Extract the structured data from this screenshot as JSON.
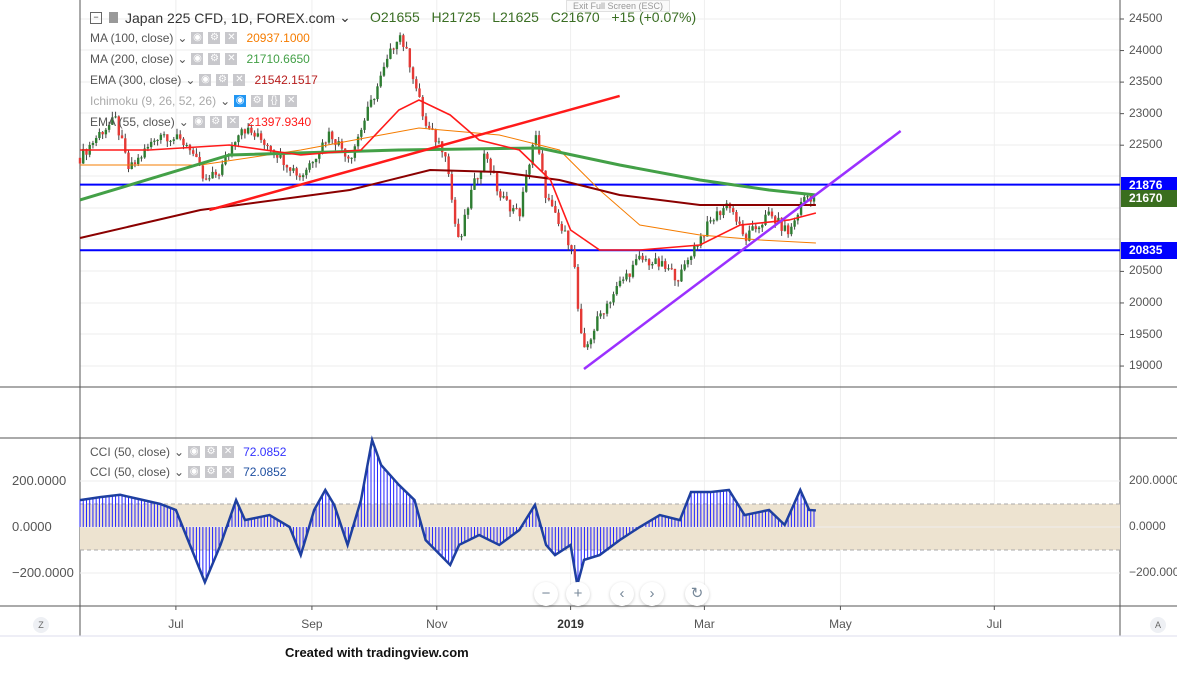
{
  "header": {
    "symbol": "Japan 225 CFD, 1D, FOREX.com",
    "open": "O21655",
    "high": "H21725",
    "low": "L21625",
    "close": "C21670",
    "change": "+15 (+0.07%)",
    "exit_fullscreen": "Exit Full Screen (ESC)"
  },
  "indicators": [
    {
      "label": "MA (100, close)",
      "value": "20937.1000",
      "color": "#f57c00"
    },
    {
      "label": "MA (200, close)",
      "value": "21710.6650",
      "color": "#43a047"
    },
    {
      "label": "EMA (300, close)",
      "value": "21542.1517",
      "color": "#b71c1c"
    },
    {
      "label": "Ichimoku (9, 26, 52, 26)",
      "value": "",
      "color": "#999999"
    },
    {
      "label": "EMA (55, close)",
      "value": "21397.9340",
      "color": "#ff1a1a"
    }
  ],
  "cci_legends": [
    {
      "label": "CCI (50, close)",
      "value": "72.0852",
      "color": "#3333ff"
    },
    {
      "label": "CCI (50, close)",
      "value": "72.0852",
      "color": "#1e4fa0"
    }
  ],
  "price_axis": {
    "ticks": [
      "24500",
      "24000",
      "23500",
      "23000",
      "22500",
      "20500",
      "20000",
      "19500",
      "19000"
    ],
    "tick_values": [
      24500,
      24000,
      23500,
      23000,
      22500,
      20500,
      20000,
      19500,
      19000
    ]
  },
  "price_tags": [
    {
      "value": "21876",
      "color": "#0000ff"
    },
    {
      "value": "21670",
      "color": "#3a6e1e"
    },
    {
      "value": "20835",
      "color": "#0000ff"
    }
  ],
  "cci_axis": {
    "ticks": [
      "200.0000",
      "0.0000",
      "−200.0000"
    ],
    "tick_values": [
      200,
      0,
      -200
    ]
  },
  "time_axis": {
    "labels": [
      "Jul",
      "Sep",
      "Nov",
      "2019",
      "Mar",
      "May",
      "Jul"
    ],
    "label_t": [
      43,
      104,
      160,
      220,
      280,
      341,
      410
    ]
  },
  "nav": {
    "zoom_out": "−",
    "zoom_in": "+",
    "prev": "‹",
    "next": "›",
    "reset": "↻",
    "left_corner": "Z",
    "right_corner": "A"
  },
  "credit": "Created with tradingview.com",
  "chart_data": {
    "type": "candlestick",
    "x_unit": "calendar days from start (late May 2018)",
    "close_path": [
      [
        0,
        22300
      ],
      [
        9,
        22700
      ],
      [
        16,
        22900
      ],
      [
        22,
        22100
      ],
      [
        36,
        22700
      ],
      [
        49,
        22500
      ],
      [
        56,
        21900
      ],
      [
        63,
        22100
      ],
      [
        72,
        22800
      ],
      [
        85,
        22500
      ],
      [
        99,
        22000
      ],
      [
        112,
        22700
      ],
      [
        121,
        22300
      ],
      [
        132,
        23300
      ],
      [
        143,
        24300
      ],
      [
        148,
        23800
      ],
      [
        155,
        22800
      ],
      [
        164,
        22400
      ],
      [
        168,
        21300
      ],
      [
        170,
        20900
      ],
      [
        175,
        21700
      ],
      [
        182,
        22400
      ],
      [
        188,
        21700
      ],
      [
        197,
        21400
      ],
      [
        204,
        22700
      ],
      [
        209,
        21700
      ],
      [
        215,
        21200
      ],
      [
        221,
        20900
      ],
      [
        224,
        19600
      ],
      [
        226,
        19200
      ],
      [
        233,
        19800
      ],
      [
        242,
        20300
      ],
      [
        251,
        20700
      ],
      [
        260,
        20600
      ],
      [
        269,
        20400
      ],
      [
        274,
        20800
      ],
      [
        283,
        21300
      ],
      [
        291,
        21600
      ],
      [
        298,
        21000
      ],
      [
        309,
        21400
      ],
      [
        318,
        21100
      ],
      [
        325,
        21700
      ],
      [
        330,
        21670
      ]
    ],
    "ma100": [
      [
        0,
        22186
      ],
      [
        54,
        22186
      ],
      [
        99,
        22424
      ],
      [
        135,
        22662
      ],
      [
        152,
        22773
      ],
      [
        188,
        22662
      ],
      [
        215,
        22424
      ],
      [
        233,
        21790
      ],
      [
        251,
        21235
      ],
      [
        278,
        21077
      ],
      [
        305,
        20998
      ],
      [
        330,
        20950
      ]
    ],
    "ma200": [
      [
        0,
        21632
      ],
      [
        67,
        22345
      ],
      [
        143,
        22424
      ],
      [
        206,
        22456
      ],
      [
        242,
        22186
      ],
      [
        278,
        21948
      ],
      [
        309,
        21790
      ],
      [
        330,
        21711
      ]
    ],
    "ema300": [
      [
        0,
        21029
      ],
      [
        54,
        21473
      ],
      [
        121,
        21790
      ],
      [
        157,
        22107
      ],
      [
        188,
        22075
      ],
      [
        215,
        21948
      ],
      [
        242,
        21711
      ],
      [
        278,
        21552
      ],
      [
        330,
        21552
      ]
    ],
    "ema55": [
      [
        0,
        22424
      ],
      [
        31,
        22424
      ],
      [
        67,
        22503
      ],
      [
        99,
        22345
      ],
      [
        126,
        22424
      ],
      [
        143,
        23058
      ],
      [
        152,
        23216
      ],
      [
        166,
        22979
      ],
      [
        179,
        22582
      ],
      [
        197,
        22424
      ],
      [
        211,
        21948
      ],
      [
        220,
        21156
      ],
      [
        233,
        20839
      ],
      [
        251,
        20839
      ],
      [
        278,
        20918
      ],
      [
        296,
        21235
      ],
      [
        318,
        21315
      ],
      [
        330,
        21426
      ]
    ],
    "trendlines": [
      {
        "color": "#ff1a1a",
        "from": [
          58,
          21473
        ],
        "to": [
          242,
          23280
        ]
      },
      {
        "color": "#9b30ff",
        "from": [
          226,
          18953
        ],
        "to": [
          368,
          22725
        ]
      }
    ],
    "horizontal_levels": [
      21876,
      20835
    ],
    "cci": [
      [
        0,
        117
      ],
      [
        9,
        130
      ],
      [
        18,
        140
      ],
      [
        27,
        120
      ],
      [
        36,
        100
      ],
      [
        43,
        74
      ],
      [
        52,
        -143
      ],
      [
        56,
        -240
      ],
      [
        63,
        -78
      ],
      [
        70,
        117
      ],
      [
        74,
        30
      ],
      [
        85,
        52
      ],
      [
        94,
        0
      ],
      [
        99,
        -122
      ],
      [
        105,
        74
      ],
      [
        110,
        161
      ],
      [
        114,
        96
      ],
      [
        120,
        -78
      ],
      [
        126,
        117
      ],
      [
        131,
        378
      ],
      [
        135,
        270
      ],
      [
        143,
        183
      ],
      [
        150,
        117
      ],
      [
        155,
        -57
      ],
      [
        166,
        -165
      ],
      [
        170,
        -78
      ],
      [
        179,
        -35
      ],
      [
        188,
        -78
      ],
      [
        197,
        -13
      ],
      [
        204,
        96
      ],
      [
        209,
        -78
      ],
      [
        213,
        -122
      ],
      [
        220,
        -78
      ],
      [
        223,
        -252
      ],
      [
        226,
        -143
      ],
      [
        233,
        -122
      ],
      [
        242,
        -57
      ],
      [
        251,
        0
      ],
      [
        260,
        52
      ],
      [
        269,
        30
      ],
      [
        274,
        152
      ],
      [
        283,
        152
      ],
      [
        291,
        161
      ],
      [
        298,
        52
      ],
      [
        309,
        74
      ],
      [
        316,
        9
      ],
      [
        323,
        161
      ],
      [
        327,
        74
      ],
      [
        330,
        72
      ]
    ],
    "cci_band": [
      -100,
      100
    ],
    "ylim": [
      18800,
      24700
    ]
  }
}
